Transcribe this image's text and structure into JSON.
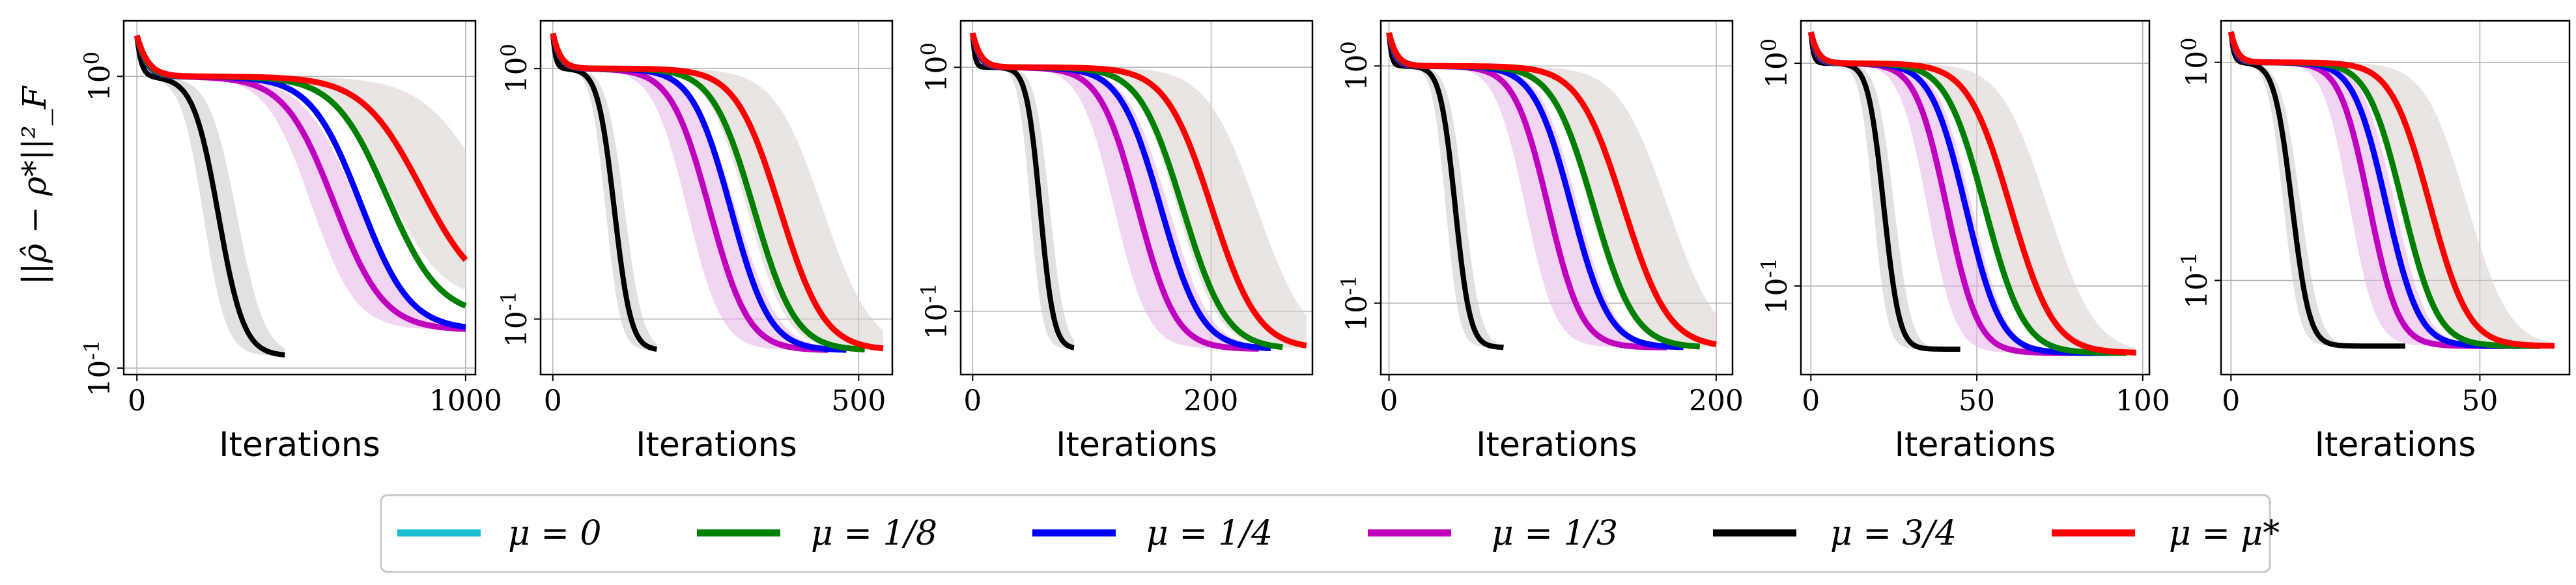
{
  "figure": {
    "ylabel": "||ρ̂ − ρ*||²_F",
    "legend": [
      {
        "key": "mu0",
        "label": "μ = 0",
        "color": "#17becf"
      },
      {
        "key": "mu18",
        "label": "μ = 1/8",
        "color": "#008000"
      },
      {
        "key": "mu14",
        "label": "μ = 1/4",
        "color": "#0000ff"
      },
      {
        "key": "mu13",
        "label": "μ = 1/3",
        "color": "#bf00bf"
      },
      {
        "key": "mu34",
        "label": "μ = 3/4",
        "color": "#000000"
      },
      {
        "key": "mustar",
        "label": "μ = μ*",
        "color": "#ff0000"
      }
    ]
  },
  "chart_data": [
    {
      "type": "line",
      "yscale": "log",
      "xlabel": "Iterations",
      "ylabel": "||ρ̂ − ρ*||²_F",
      "xlim": [
        -40,
        1030
      ],
      "ylim": [
        0.095,
        1.55
      ],
      "grid": true,
      "xticks": [
        0,
        1000
      ],
      "xtick_labels": [
        "0",
        "1000"
      ],
      "yticks": [
        0.1,
        1.0
      ],
      "ytick_labels": [
        "10^-1",
        "10^0"
      ],
      "floor": 0.135,
      "series": [
        {
          "key": "mu34",
          "name": "μ = 3/4",
          "color": "#000000",
          "x_end": 450,
          "midpoint": 210,
          "width": 35,
          "floor": 0.11,
          "band": [
            0.8,
            1.25
          ]
        },
        {
          "key": "mu13",
          "name": "μ = 1/3",
          "color": "#bf00bf",
          "x_end": 1000,
          "midpoint": 530,
          "width": 70,
          "band": [
            0.88,
            1.12
          ]
        },
        {
          "key": "mu14",
          "name": "μ = 1/4",
          "color": "#0000ff",
          "x_end": 1000,
          "midpoint": 610,
          "width": 70,
          "band": null
        },
        {
          "key": "mu18",
          "name": "μ = 1/8",
          "color": "#008000",
          "x_end": 1000,
          "midpoint": 690,
          "width": 75,
          "floor": 0.15,
          "band": null
        },
        {
          "key": "mustar",
          "name": "μ = μ*",
          "color": "#ff0000",
          "x_end": 1000,
          "midpoint": 790,
          "width": 85,
          "floor": 0.17,
          "band": [
            0.88,
            1.25
          ]
        }
      ]
    },
    {
      "type": "line",
      "yscale": "log",
      "xlabel": "Iterations",
      "ylabel": "",
      "xlim": [
        -20,
        555
      ],
      "ylim": [
        0.06,
        1.55
      ],
      "grid": true,
      "xticks": [
        0,
        500
      ],
      "xtick_labels": [
        "0",
        "500"
      ],
      "yticks": [
        0.1,
        1.0
      ],
      "ytick_labels": [
        "10^-1",
        "10^0"
      ],
      "floor": 0.075,
      "series": [
        {
          "key": "mu34",
          "name": "μ = 3/4",
          "color": "#000000",
          "x_end": 170,
          "midpoint": 85,
          "width": 12,
          "band": [
            0.85,
            1.18
          ]
        },
        {
          "key": "mu13",
          "name": "μ = 1/3",
          "color": "#bf00bf",
          "x_end": 450,
          "midpoint": 220,
          "width": 28,
          "band": [
            0.85,
            1.18
          ]
        },
        {
          "key": "mu14",
          "name": "μ = 1/4",
          "color": "#0000ff",
          "x_end": 480,
          "midpoint": 255,
          "width": 28,
          "band": null
        },
        {
          "key": "mu18",
          "name": "μ = 1/8",
          "color": "#008000",
          "x_end": 510,
          "midpoint": 290,
          "width": 30,
          "band": null
        },
        {
          "key": "mustar",
          "name": "μ = μ*",
          "color": "#ff0000",
          "x_end": 540,
          "midpoint": 330,
          "width": 32,
          "band": [
            0.85,
            1.2
          ]
        }
      ]
    },
    {
      "type": "line",
      "yscale": "log",
      "xlabel": "Iterations",
      "ylabel": "",
      "xlim": [
        -10,
        285
      ],
      "ylim": [
        0.055,
        1.55
      ],
      "grid": true,
      "xticks": [
        0,
        200
      ],
      "xtick_labels": [
        "0",
        "200"
      ],
      "yticks": [
        0.1,
        1.0
      ],
      "ytick_labels": [
        "10^-1",
        "10^0"
      ],
      "floor": 0.07,
      "series": [
        {
          "key": "mu34",
          "name": "μ = 3/4",
          "color": "#000000",
          "x_end": 85,
          "midpoint": 50,
          "width": 5,
          "band": [
            0.85,
            1.15
          ]
        },
        {
          "key": "mu13",
          "name": "μ = 1/3",
          "color": "#bf00bf",
          "x_end": 240,
          "midpoint": 120,
          "width": 14,
          "band": [
            0.85,
            1.2
          ]
        },
        {
          "key": "mu14",
          "name": "μ = 1/4",
          "color": "#0000ff",
          "x_end": 250,
          "midpoint": 138,
          "width": 15,
          "band": null
        },
        {
          "key": "mu18",
          "name": "μ = 1/8",
          "color": "#008000",
          "x_end": 260,
          "midpoint": 155,
          "width": 16,
          "band": null
        },
        {
          "key": "mustar",
          "name": "μ = μ*",
          "color": "#ff0000",
          "x_end": 280,
          "midpoint": 178,
          "width": 17,
          "band": [
            0.85,
            1.2
          ]
        }
      ]
    },
    {
      "type": "line",
      "yscale": "log",
      "xlabel": "Iterations",
      "ylabel": "",
      "xlim": [
        -5,
        210
      ],
      "ylim": [
        0.05,
        1.55
      ],
      "grid": true,
      "xticks": [
        0,
        200
      ],
      "xtick_labels": [
        "0",
        "200"
      ],
      "yticks": [
        0.1,
        1.0
      ],
      "ytick_labels": [
        "10^-1",
        "10^0"
      ],
      "floor": 0.065,
      "series": [
        {
          "key": "mu34",
          "name": "μ = 3/4",
          "color": "#000000",
          "x_end": 70,
          "midpoint": 35,
          "width": 4,
          "band": [
            0.85,
            1.15
          ]
        },
        {
          "key": "mu13",
          "name": "μ = 1/3",
          "color": "#bf00bf",
          "x_end": 170,
          "midpoint": 85,
          "width": 9,
          "band": [
            0.85,
            1.2
          ]
        },
        {
          "key": "mu14",
          "name": "μ = 1/4",
          "color": "#0000ff",
          "x_end": 180,
          "midpoint": 98,
          "width": 10,
          "band": null
        },
        {
          "key": "mu18",
          "name": "μ = 1/8",
          "color": "#008000",
          "x_end": 190,
          "midpoint": 110,
          "width": 11,
          "band": null
        },
        {
          "key": "mustar",
          "name": "μ = μ*",
          "color": "#ff0000",
          "x_end": 200,
          "midpoint": 127,
          "width": 12,
          "band": [
            0.85,
            1.2
          ]
        }
      ]
    },
    {
      "type": "line",
      "yscale": "log",
      "xlabel": "Iterations",
      "ylabel": "",
      "xlim": [
        -3,
        102
      ],
      "ylim": [
        0.04,
        1.55
      ],
      "grid": true,
      "xticks": [
        0,
        50,
        100
      ],
      "xtick_labels": [
        "0",
        "50",
        "100"
      ],
      "yticks": [
        0.1,
        1.0
      ],
      "ytick_labels": [
        "10^-1",
        "10^0"
      ],
      "floor": 0.05,
      "series": [
        {
          "key": "mu34",
          "name": "μ = 3/4",
          "color": "#000000",
          "x_end": 45,
          "midpoint": 19,
          "width": 2,
          "floor": 0.052,
          "band": [
            0.85,
            1.15
          ]
        },
        {
          "key": "mu13",
          "name": "μ = 1/3",
          "color": "#bf00bf",
          "x_end": 85,
          "midpoint": 35,
          "width": 4,
          "band": [
            0.85,
            1.2
          ]
        },
        {
          "key": "mu14",
          "name": "μ = 1/4",
          "color": "#0000ff",
          "x_end": 90,
          "midpoint": 40,
          "width": 4.5,
          "band": null
        },
        {
          "key": "mu18",
          "name": "μ = 1/8",
          "color": "#008000",
          "x_end": 95,
          "midpoint": 45,
          "width": 5,
          "band": null
        },
        {
          "key": "mustar",
          "name": "μ = μ*",
          "color": "#ff0000",
          "x_end": 98,
          "midpoint": 52,
          "width": 5.5,
          "band": [
            0.85,
            1.2
          ]
        }
      ]
    },
    {
      "type": "line",
      "yscale": "log",
      "xlabel": "Iterations",
      "ylabel": "",
      "xlim": [
        -2,
        68
      ],
      "ylim": [
        0.037,
        1.55
      ],
      "grid": true,
      "xticks": [
        0,
        50
      ],
      "xtick_labels": [
        "0",
        "50"
      ],
      "yticks": [
        0.1,
        1.0
      ],
      "ytick_labels": [
        "10^-1",
        "10^0"
      ],
      "floor": 0.05,
      "series": [
        {
          "key": "mu34",
          "name": "μ = 3/4",
          "color": "#000000",
          "x_end": 35,
          "midpoint": 10,
          "width": 1.5,
          "floor": 0.05,
          "band": [
            0.85,
            1.15
          ]
        },
        {
          "key": "mu13",
          "name": "μ = 1/3",
          "color": "#bf00bf",
          "x_end": 55,
          "midpoint": 24,
          "width": 2.5,
          "band": [
            0.85,
            1.2
          ]
        },
        {
          "key": "mu14",
          "name": "μ = 1/4",
          "color": "#0000ff",
          "x_end": 58,
          "midpoint": 27,
          "width": 2.8,
          "band": null
        },
        {
          "key": "mu18",
          "name": "μ = 1/8",
          "color": "#008000",
          "x_end": 62,
          "midpoint": 30,
          "width": 3,
          "band": null
        },
        {
          "key": "mustar",
          "name": "μ = μ*",
          "color": "#ff0000",
          "x_end": 65,
          "midpoint": 35,
          "width": 3.3,
          "band": [
            0.85,
            1.2
          ]
        }
      ]
    }
  ]
}
